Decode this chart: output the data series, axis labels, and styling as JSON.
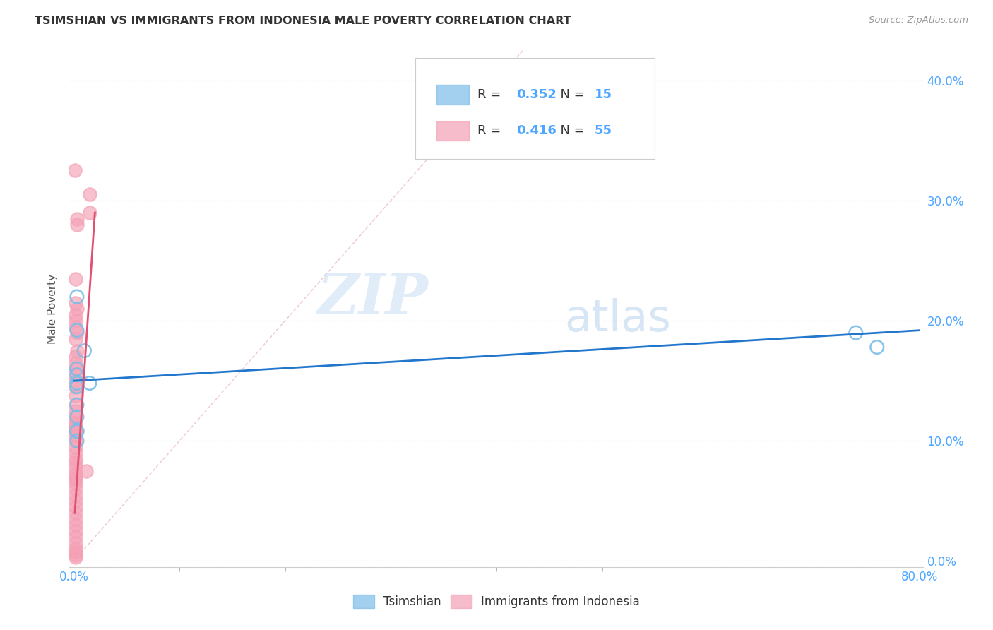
{
  "title": "TSIMSHIAN VS IMMIGRANTS FROM INDONESIA MALE POVERTY CORRELATION CHART",
  "source": "Source: ZipAtlas.com",
  "tick_color": "#4da6ff",
  "ylabel": "Male Poverty",
  "xlim": [
    -0.004,
    0.804
  ],
  "ylim": [
    -0.005,
    0.425
  ],
  "xtick_positions": [
    0.0,
    0.8
  ],
  "xtick_labels": [
    "0.0%",
    "80.0%"
  ],
  "yticks": [
    0.0,
    0.1,
    0.2,
    0.3,
    0.4
  ],
  "ytick_labels": [
    "0.0%",
    "10.0%",
    "20.0%",
    "30.0%",
    "40.0%"
  ],
  "background_color": "#ffffff",
  "watermark_zip": "ZIP",
  "watermark_atlas": "atlas",
  "legend_labels": [
    "Tsimshian",
    "Immigrants from Indonesia"
  ],
  "blue_R": "0.352",
  "blue_N": "15",
  "pink_R": "0.416",
  "pink_N": "55",
  "blue_color": "#7bbde8",
  "pink_color": "#f4a0b5",
  "blue_scatter": [
    [
      0.003,
      0.22
    ],
    [
      0.003,
      0.192
    ],
    [
      0.003,
      0.16
    ],
    [
      0.003,
      0.155
    ],
    [
      0.003,
      0.148
    ],
    [
      0.003,
      0.145
    ],
    [
      0.003,
      0.13
    ],
    [
      0.003,
      0.12
    ],
    [
      0.003,
      0.108
    ],
    [
      0.003,
      0.108
    ],
    [
      0.003,
      0.1
    ],
    [
      0.01,
      0.175
    ],
    [
      0.015,
      0.148
    ],
    [
      0.74,
      0.19
    ],
    [
      0.76,
      0.178
    ]
  ],
  "pink_scatter": [
    [
      0.001,
      0.325
    ],
    [
      0.015,
      0.305
    ],
    [
      0.015,
      0.29
    ],
    [
      0.003,
      0.285
    ],
    [
      0.003,
      0.28
    ],
    [
      0.002,
      0.235
    ],
    [
      0.002,
      0.215
    ],
    [
      0.003,
      0.21
    ],
    [
      0.002,
      0.205
    ],
    [
      0.002,
      0.2
    ],
    [
      0.002,
      0.195
    ],
    [
      0.003,
      0.19
    ],
    [
      0.002,
      0.185
    ],
    [
      0.003,
      0.175
    ],
    [
      0.002,
      0.17
    ],
    [
      0.002,
      0.165
    ],
    [
      0.002,
      0.16
    ],
    [
      0.002,
      0.155
    ],
    [
      0.002,
      0.15
    ],
    [
      0.002,
      0.145
    ],
    [
      0.002,
      0.138
    ],
    [
      0.002,
      0.13
    ],
    [
      0.002,
      0.125
    ],
    [
      0.002,
      0.12
    ],
    [
      0.002,
      0.115
    ],
    [
      0.002,
      0.115
    ],
    [
      0.002,
      0.112
    ],
    [
      0.002,
      0.11
    ],
    [
      0.002,
      0.108
    ],
    [
      0.002,
      0.105
    ],
    [
      0.002,
      0.1
    ],
    [
      0.002,
      0.095
    ],
    [
      0.002,
      0.09
    ],
    [
      0.002,
      0.085
    ],
    [
      0.002,
      0.082
    ],
    [
      0.002,
      0.078
    ],
    [
      0.002,
      0.073
    ],
    [
      0.002,
      0.07
    ],
    [
      0.002,
      0.068
    ],
    [
      0.002,
      0.065
    ],
    [
      0.002,
      0.06
    ],
    [
      0.002,
      0.055
    ],
    [
      0.002,
      0.05
    ],
    [
      0.002,
      0.045
    ],
    [
      0.002,
      0.04
    ],
    [
      0.002,
      0.035
    ],
    [
      0.002,
      0.03
    ],
    [
      0.012,
      0.075
    ],
    [
      0.002,
      0.025
    ],
    [
      0.002,
      0.02
    ],
    [
      0.002,
      0.015
    ],
    [
      0.002,
      0.01
    ],
    [
      0.002,
      0.008
    ],
    [
      0.002,
      0.005
    ],
    [
      0.002,
      0.003
    ]
  ],
  "blue_line_x": [
    0.0,
    0.8
  ],
  "blue_line_y": [
    0.15,
    0.192
  ],
  "pink_line_x": [
    0.001,
    0.02
  ],
  "pink_line_y": [
    0.04,
    0.29
  ],
  "diagonal_line_x": [
    0.0,
    0.425
  ],
  "diagonal_line_y": [
    0.0,
    0.425
  ],
  "grid_color": "#cccccc",
  "accent_color": "#4da6ff"
}
